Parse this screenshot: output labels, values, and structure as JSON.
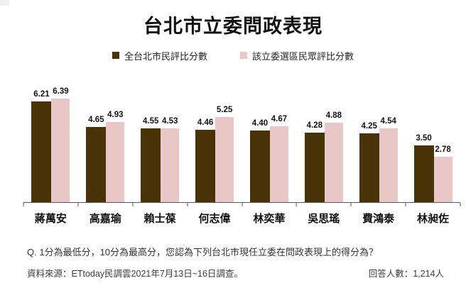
{
  "page": {
    "title": "台北市立委問政表現",
    "question": "Q. 1分為最低分，10分為最高分，您認為下列台北市現任立委在問政表現上的得分為？",
    "source": "資料來源：ETtoday民調雲2021年7月13日~16日調查。",
    "respondents": "回答人數：1,214人"
  },
  "colors": {
    "series1": "#4a3306",
    "series2": "#eac7c7",
    "axis": "#595959",
    "text": "#111111"
  },
  "chart_data": {
    "type": "bar",
    "title": "台北市立委問政表現",
    "categories": [
      "蔣萬安",
      "高嘉瑜",
      "賴士葆",
      "何志偉",
      "林奕華",
      "吳思瑤",
      "費鴻泰",
      "林昶佐"
    ],
    "series": [
      {
        "name": "全台北市民評比分數",
        "color": "#4a3306",
        "values": [
          6.21,
          4.65,
          4.55,
          4.46,
          4.4,
          4.28,
          4.25,
          3.5
        ]
      },
      {
        "name": "該立委選區民眾評比分數",
        "color": "#eac7c7",
        "values": [
          6.39,
          4.93,
          4.53,
          5.25,
          4.67,
          4.88,
          4.54,
          2.78
        ]
      }
    ],
    "ylim": [
      0,
      7
    ],
    "grid": false,
    "legend_position": "top",
    "value_labels": true,
    "value_label_format": "0.00"
  }
}
